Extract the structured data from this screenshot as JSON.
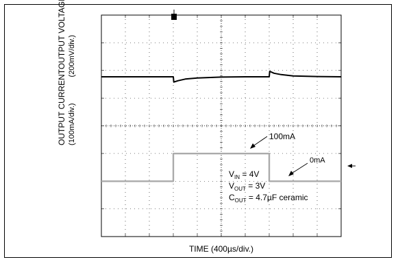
{
  "chart_data": {
    "type": "line",
    "title": "",
    "xlabel": "TIME (400µs/div.)",
    "y_labels": {
      "top_title": "OUTPUT VOLTAGE",
      "top_unit": "(200mV/div.)",
      "bottom_title": "OUTPUT CURRENT",
      "bottom_unit": "(100mA/div.)"
    },
    "grid": true,
    "grid_divisions": {
      "x": 10,
      "y": 8
    },
    "trigger_marker": "T",
    "conditions": {
      "vin_sym": "V",
      "vin_sub": "IN",
      "vin_val": " = 4V",
      "vout_sym": "V",
      "vout_sub": "OUT",
      "vout_val": " = 3V",
      "cout_sym": "C",
      "cout_sub": "OUT",
      "cout_val": " = 4.7µF ceramic"
    },
    "annotations": {
      "high": "100mA",
      "low": "0mA"
    },
    "series": [
      {
        "name": "Output Voltage",
        "color": "#000000",
        "x": [
          0,
          3.0,
          3.02,
          3.2,
          3.5,
          4,
          5,
          6,
          6.99,
          7.0,
          7.02,
          7.2,
          7.5,
          8,
          9,
          10
        ],
        "y": [
          5.77,
          5.77,
          5.58,
          5.63,
          5.69,
          5.73,
          5.76,
          5.77,
          5.77,
          5.77,
          5.97,
          5.9,
          5.85,
          5.8,
          5.78,
          5.77
        ]
      },
      {
        "name": "Output Current",
        "color": "#aaaaaa",
        "x": [
          0,
          3.0,
          3.0,
          7.0,
          7.0,
          10
        ],
        "y": [
          2.0,
          2.0,
          3.0,
          3.0,
          2.0,
          2.0
        ]
      }
    ]
  }
}
